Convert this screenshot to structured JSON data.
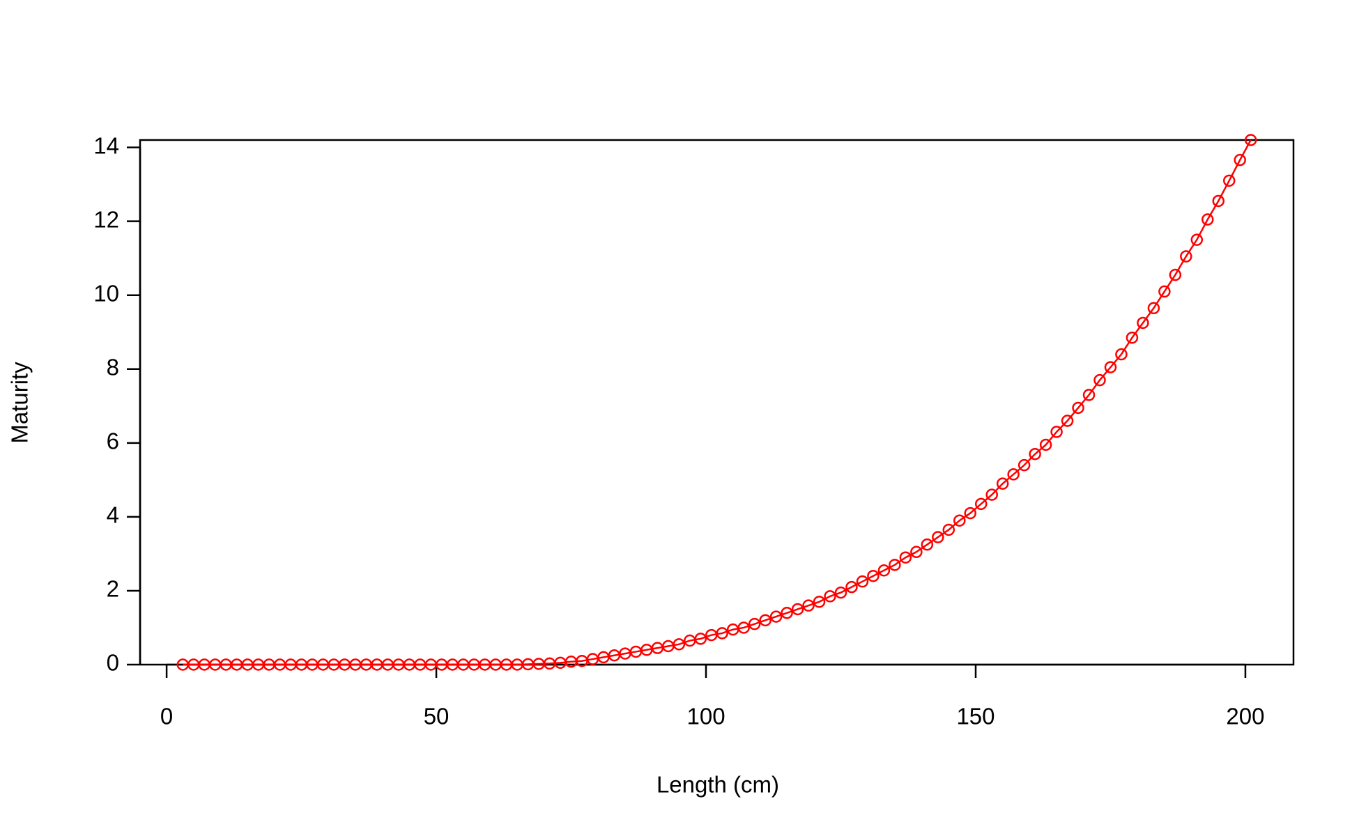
{
  "chart_data": {
    "type": "line",
    "x_label": "Length (cm)",
    "y_label": "Maturity",
    "x": [
      3,
      5,
      7,
      9,
      11,
      13,
      15,
      17,
      19,
      21,
      23,
      25,
      27,
      29,
      31,
      33,
      35,
      37,
      39,
      41,
      43,
      45,
      47,
      49,
      51,
      53,
      55,
      57,
      59,
      61,
      63,
      65,
      67,
      69,
      71,
      73,
      75,
      77,
      79,
      81,
      83,
      85,
      87,
      89,
      91,
      93,
      95,
      97,
      99,
      101,
      103,
      105,
      107,
      109,
      111,
      113,
      115,
      117,
      119,
      121,
      123,
      125,
      127,
      129,
      131,
      133,
      135,
      137,
      139,
      141,
      143,
      145,
      147,
      149,
      151,
      153,
      155,
      157,
      159,
      161,
      163,
      165,
      167,
      169,
      171,
      173,
      175,
      177,
      179,
      181,
      183,
      185,
      187,
      189,
      191,
      193,
      195,
      197,
      199,
      201
    ],
    "values": [
      0,
      0,
      0,
      0,
      0,
      0,
      0,
      0,
      0,
      0,
      0,
      0,
      0,
      0,
      0,
      0,
      0,
      0,
      0,
      0,
      0,
      0,
      0,
      0,
      0,
      0,
      0,
      0,
      0,
      0,
      0,
      0,
      0.01,
      0.02,
      0.03,
      0.05,
      0.08,
      0.1,
      0.15,
      0.2,
      0.25,
      0.3,
      0.35,
      0.4,
      0.45,
      0.5,
      0.55,
      0.65,
      0.7,
      0.8,
      0.85,
      0.95,
      1.0,
      1.1,
      1.2,
      1.3,
      1.4,
      1.5,
      1.6,
      1.7,
      1.85,
      1.95,
      2.1,
      2.25,
      2.4,
      2.55,
      2.7,
      2.9,
      3.05,
      3.25,
      3.45,
      3.65,
      3.9,
      4.1,
      4.35,
      4.6,
      4.9,
      5.15,
      5.4,
      5.7,
      5.95,
      6.3,
      6.6,
      6.95,
      7.3,
      7.7,
      8.05,
      8.4,
      8.85,
      9.25,
      9.65,
      10.1,
      10.55,
      11.05,
      11.5,
      12.05,
      12.55,
      13.1,
      13.66,
      14.2
    ],
    "color": "#ff0000",
    "marker": "circle",
    "xlim": [
      -4.92,
      208.92
    ],
    "ylim": [
      0,
      14.2
    ],
    "xticks": [
      0,
      50,
      100,
      150,
      200
    ],
    "yticks": [
      0,
      2,
      4,
      6,
      8,
      10,
      12,
      14
    ]
  }
}
